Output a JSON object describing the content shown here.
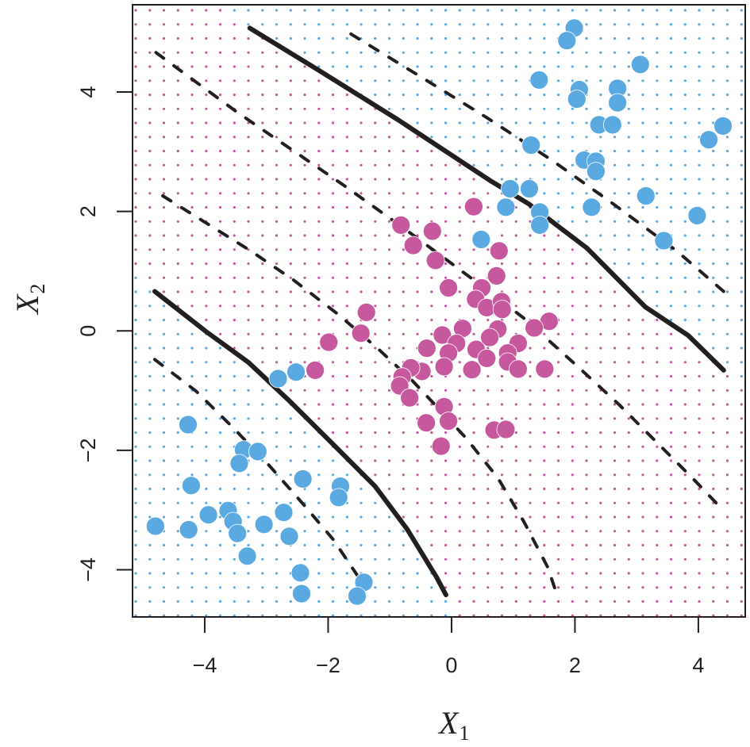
{
  "chart_data": {
    "type": "scatter",
    "title": "",
    "xlabel": "X1",
    "ylabel": "X2",
    "xlabel_main": "X",
    "xlabel_sub": "1",
    "ylabel_main": "X",
    "ylabel_sub": "2",
    "xlim": [
      -5.17,
      4.76
    ],
    "ylim": [
      -4.79,
      5.46
    ],
    "xticks": [
      -4,
      -2,
      0,
      2,
      4
    ],
    "yticks": [
      -4,
      -2,
      0,
      2,
      4
    ],
    "xtick_labels": [
      "−4",
      "−2",
      "0",
      "2",
      "4"
    ],
    "ytick_labels": [
      "−4",
      "−2",
      "0",
      "2",
      "4"
    ],
    "grid": false,
    "legend": null,
    "colors": {
      "blue": "#5aa9e0",
      "magenta": "#c6589e",
      "curve": "#231f20"
    },
    "background_grid": {
      "spacing_data_x": 0.2285,
      "spacing_data_y": 0.2357,
      "description": "dotted prediction grid colored by predicted class"
    },
    "series": [
      {
        "name": "class_blue",
        "color": "#5aa9e0",
        "points": [
          [
            1.99,
            5.07
          ],
          [
            1.87,
            4.86
          ],
          [
            3.06,
            4.46
          ],
          [
            1.42,
            4.2
          ],
          [
            2.07,
            4.04
          ],
          [
            2.03,
            3.88
          ],
          [
            2.69,
            4.06
          ],
          [
            2.69,
            3.82
          ],
          [
            2.39,
            3.45
          ],
          [
            2.61,
            3.45
          ],
          [
            4.4,
            3.43
          ],
          [
            4.17,
            3.2
          ],
          [
            1.29,
            3.11
          ],
          [
            2.15,
            2.86
          ],
          [
            2.34,
            2.84
          ],
          [
            2.34,
            2.67
          ],
          [
            0.95,
            2.38
          ],
          [
            1.26,
            2.38
          ],
          [
            3.15,
            2.26
          ],
          [
            0.88,
            2.07
          ],
          [
            2.27,
            2.07
          ],
          [
            1.43,
            1.99
          ],
          [
            1.43,
            1.77
          ],
          [
            3.98,
            1.93
          ],
          [
            0.48,
            1.53
          ],
          [
            3.44,
            1.51
          ],
          [
            -2.81,
            -0.8
          ],
          [
            -2.52,
            -0.69
          ],
          [
            -4.27,
            -1.57
          ],
          [
            -3.37,
            -1.99
          ],
          [
            -3.14,
            -2.02
          ],
          [
            -3.44,
            -2.22
          ],
          [
            -4.22,
            -2.59
          ],
          [
            -2.41,
            -2.48
          ],
          [
            -1.8,
            -2.6
          ],
          [
            -1.83,
            -2.79
          ],
          [
            -4.8,
            -3.27
          ],
          [
            -4.26,
            -3.33
          ],
          [
            -3.94,
            -3.08
          ],
          [
            -3.62,
            -3.01
          ],
          [
            -3.54,
            -3.19
          ],
          [
            -3.47,
            -3.39
          ],
          [
            -3.04,
            -3.24
          ],
          [
            -2.72,
            -3.04
          ],
          [
            -2.63,
            -3.44
          ],
          [
            -3.31,
            -3.77
          ],
          [
            -2.45,
            -4.05
          ],
          [
            -2.43,
            -4.4
          ],
          [
            -1.42,
            -4.21
          ],
          [
            -1.53,
            -4.44
          ]
        ]
      },
      {
        "name": "class_magenta",
        "color": "#c6589e",
        "points": [
          [
            0.36,
            2.08
          ],
          [
            -0.82,
            1.77
          ],
          [
            -0.31,
            1.67
          ],
          [
            -0.62,
            1.43
          ],
          [
            0.77,
            1.34
          ],
          [
            -0.26,
            1.18
          ],
          [
            0.73,
            0.92
          ],
          [
            -0.05,
            0.72
          ],
          [
            0.49,
            0.72
          ],
          [
            0.39,
            0.53
          ],
          [
            0.57,
            0.39
          ],
          [
            0.81,
            0.49
          ],
          [
            0.82,
            0.36
          ],
          [
            -1.38,
            0.31
          ],
          [
            -1.47,
            -0.04
          ],
          [
            -1.99,
            -0.19
          ],
          [
            -2.21,
            -0.66
          ],
          [
            1.58,
            0.16
          ],
          [
            1.34,
            0.05
          ],
          [
            0.18,
            0.04
          ],
          [
            -0.15,
            -0.07
          ],
          [
            0.75,
            0.03
          ],
          [
            0.62,
            -0.11
          ],
          [
            1.08,
            -0.21
          ],
          [
            -0.4,
            -0.29
          ],
          [
            0.08,
            -0.21
          ],
          [
            0.4,
            -0.31
          ],
          [
            -0.05,
            -0.37
          ],
          [
            0.91,
            -0.37
          ],
          [
            0.57,
            -0.46
          ],
          [
            -0.12,
            -0.6
          ],
          [
            0.33,
            -0.65
          ],
          [
            0.91,
            -0.52
          ],
          [
            1.08,
            -0.64
          ],
          [
            1.51,
            -0.64
          ],
          [
            -0.48,
            -0.68
          ],
          [
            -0.66,
            -0.62
          ],
          [
            -0.8,
            -0.77
          ],
          [
            -0.84,
            -0.92
          ],
          [
            -0.68,
            -1.12
          ],
          [
            -0.12,
            -1.27
          ],
          [
            -0.41,
            -1.54
          ],
          [
            -0.05,
            -1.51
          ],
          [
            0.69,
            -1.66
          ],
          [
            0.88,
            -1.65
          ],
          [
            -0.17,
            -1.93
          ]
        ]
      }
    ],
    "curves": [
      {
        "name": "decision_boundary_lower_left",
        "style": "solid",
        "points": [
          [
            -4.81,
            0.66
          ],
          [
            -3.98,
            -0.01
          ],
          [
            -3.29,
            -0.53
          ],
          [
            -2.6,
            -1.2
          ],
          [
            -1.92,
            -1.9
          ],
          [
            -1.24,
            -2.6
          ],
          [
            -0.72,
            -3.32
          ],
          [
            -0.24,
            -4.13
          ],
          [
            -0.09,
            -4.42
          ]
        ]
      },
      {
        "name": "decision_boundary_upper_right",
        "style": "solid",
        "points": [
          [
            -3.27,
            5.07
          ],
          [
            -2.18,
            4.38
          ],
          [
            -0.89,
            3.55
          ],
          [
            0.62,
            2.52
          ],
          [
            1.26,
            2.12
          ],
          [
            2.2,
            1.38
          ],
          [
            3.14,
            0.4
          ],
          [
            3.84,
            -0.08
          ],
          [
            4.41,
            -0.66
          ]
        ]
      },
      {
        "name": "margin_upper_right",
        "style": "dashed",
        "points": [
          [
            -1.63,
            4.97
          ],
          [
            -0.54,
            4.28
          ],
          [
            0.57,
            3.57
          ],
          [
            1.65,
            2.84
          ],
          [
            2.63,
            2.12
          ],
          [
            3.66,
            1.33
          ],
          [
            4.41,
            0.66
          ]
        ]
      },
      {
        "name": "margin_upper_inner",
        "style": "dashed",
        "points": [
          [
            -4.79,
            4.66
          ],
          [
            -3.46,
            3.65
          ],
          [
            -1.75,
            2.44
          ],
          [
            -0.79,
            1.73
          ],
          [
            -0.12,
            1.22
          ],
          [
            0.53,
            0.72
          ],
          [
            1.2,
            0.19
          ],
          [
            2.11,
            -0.66
          ],
          [
            2.72,
            -1.24
          ],
          [
            3.32,
            -1.86
          ],
          [
            3.91,
            -2.47
          ],
          [
            4.39,
            -2.99
          ]
        ]
      },
      {
        "name": "margin_lower_inner",
        "style": "dashed",
        "points": [
          [
            -4.68,
            2.26
          ],
          [
            -3.24,
            1.33
          ],
          [
            -2.56,
            0.85
          ],
          [
            -1.83,
            0.27
          ],
          [
            -1.18,
            -0.31
          ],
          [
            -0.63,
            -0.84
          ],
          [
            -0.03,
            -1.5
          ],
          [
            0.23,
            -1.79
          ],
          [
            0.75,
            -2.46
          ],
          [
            1.17,
            -3.19
          ],
          [
            1.56,
            -3.96
          ],
          [
            1.69,
            -4.36
          ]
        ]
      },
      {
        "name": "margin_lower_left",
        "style": "dashed",
        "points": [
          [
            -4.81,
            -0.48
          ],
          [
            -4.14,
            -1.01
          ],
          [
            -3.55,
            -1.61
          ],
          [
            -2.95,
            -2.26
          ],
          [
            -2.43,
            -2.87
          ],
          [
            -1.92,
            -3.49
          ],
          [
            -1.4,
            -4.29
          ]
        ]
      }
    ]
  }
}
